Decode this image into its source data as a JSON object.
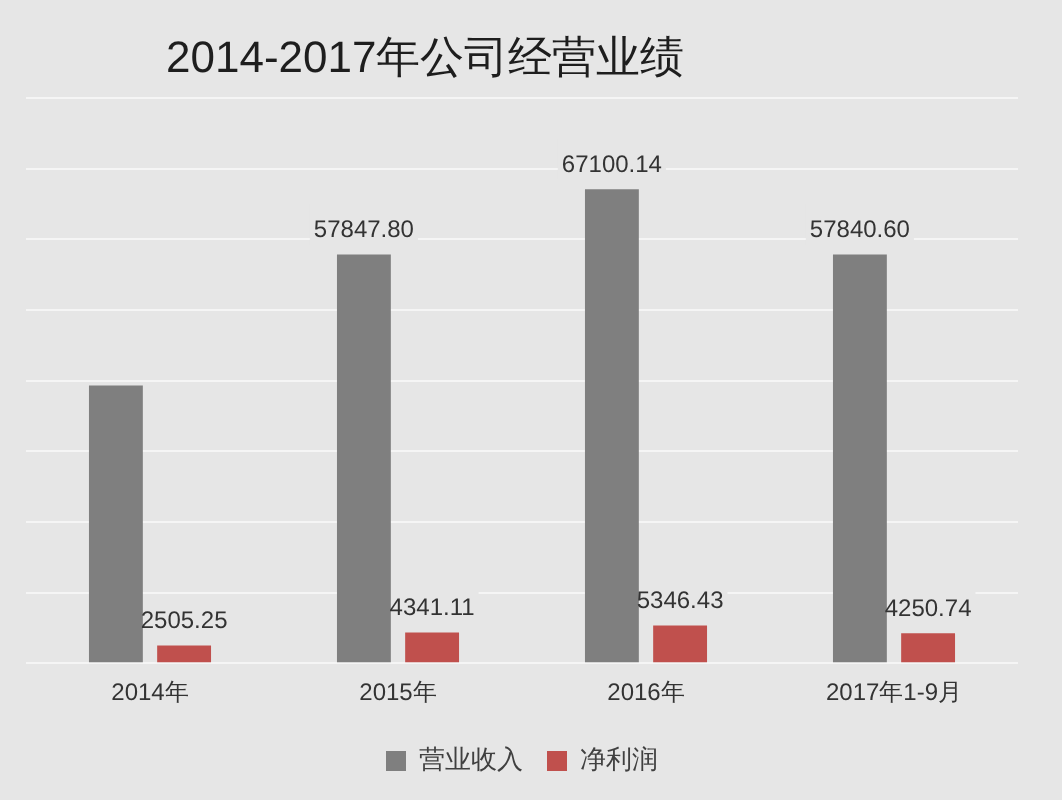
{
  "chart_data": {
    "type": "bar",
    "title": "2014-2017年公司经营业绩",
    "categories": [
      "2014年",
      "2015年",
      "2016年",
      "2017年1-9月"
    ],
    "series": [
      {
        "name": "营业收入",
        "color": "#7f7f7f",
        "values": [
          39300,
          57847.8,
          67100.14,
          57840.6
        ],
        "value_labels": [
          null,
          "57847.80",
          "67100.14",
          "57840.60"
        ]
      },
      {
        "name": "净利润",
        "color": "#c0504d",
        "values": [
          2505.25,
          4341.11,
          5346.43,
          4250.74
        ],
        "value_labels": [
          "2505.25",
          "4341.11",
          "5346.43",
          "4250.74"
        ]
      }
    ],
    "ylim": [
      0,
      80000
    ],
    "yticks": [
      {
        "value": 0,
        "label": null
      },
      {
        "value": 10000,
        "label": null
      },
      {
        "value": 20000,
        "label": null
      },
      {
        "value": 30000,
        "label": null
      },
      {
        "value": 40000,
        "label": null
      },
      {
        "value": 50000,
        "label": null
      },
      {
        "value": 60000,
        "label": null
      },
      {
        "value": 70000,
        "label": null
      },
      {
        "value": 80000,
        "label": null
      }
    ],
    "tick_labels": "x",
    "grid": "y",
    "legend": "bottom"
  }
}
